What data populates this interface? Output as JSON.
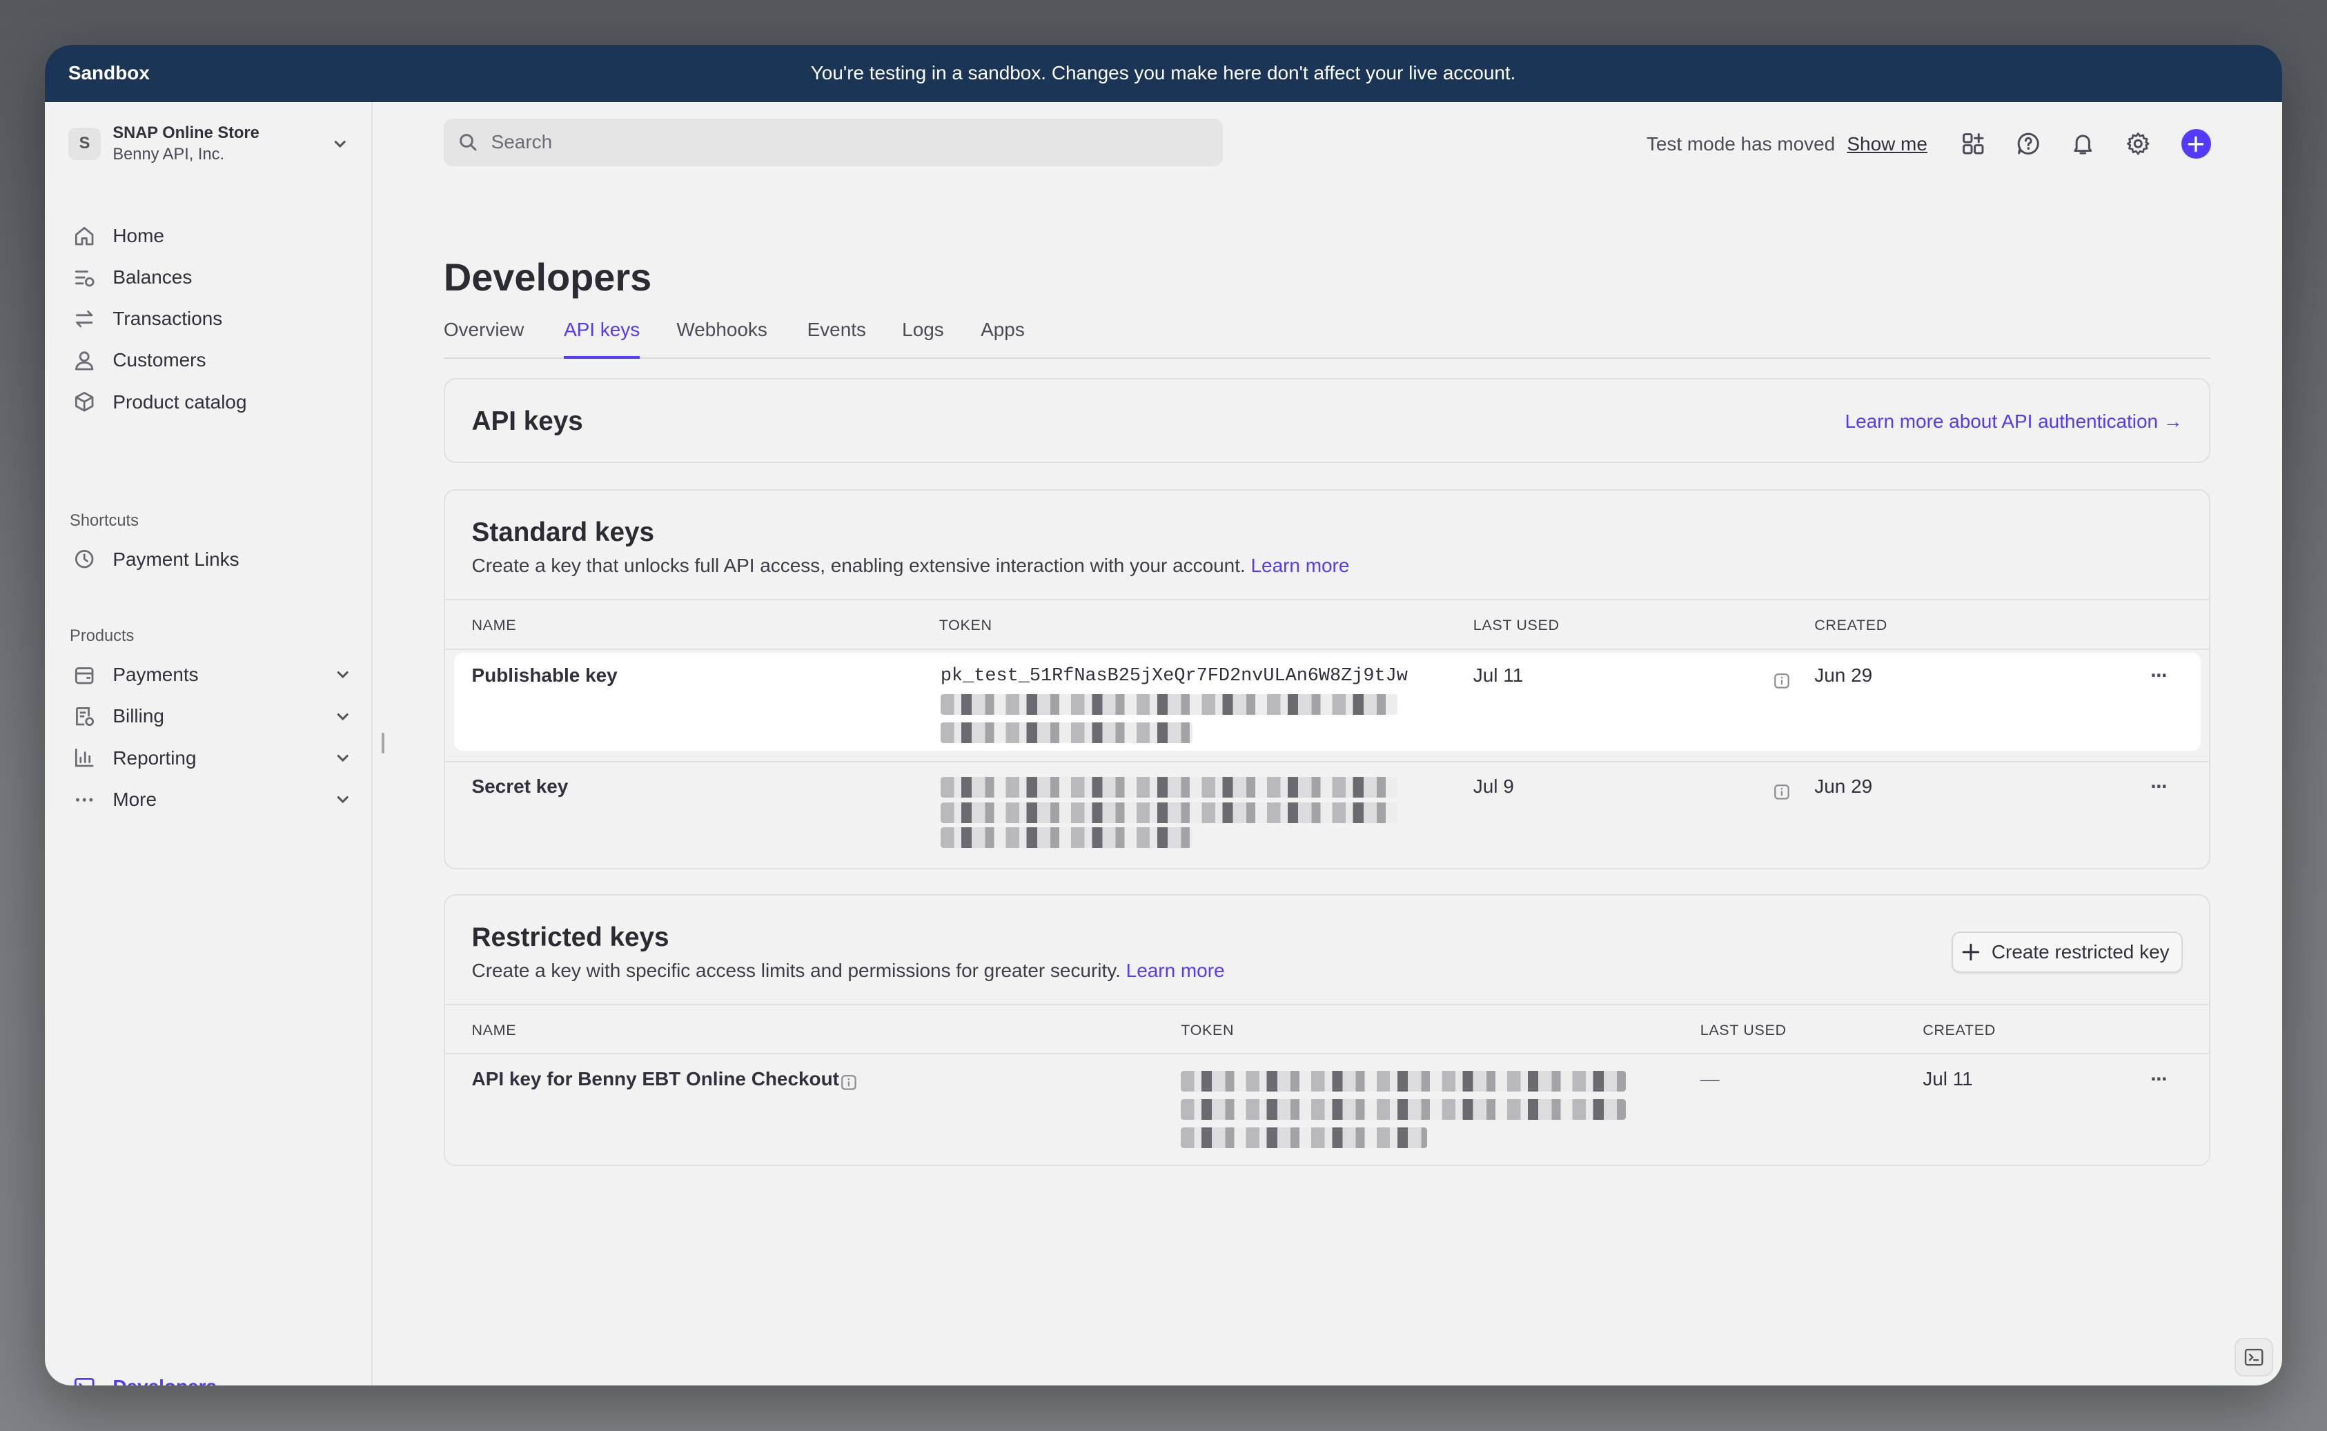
{
  "banner": {
    "title": "Sandbox",
    "message": "You're testing in a sandbox. Changes you make here don't affect your live account."
  },
  "account": {
    "initial": "S",
    "name": "SNAP Online Store",
    "company": "Benny API, Inc."
  },
  "sidebar": {
    "items": [
      {
        "label": "Home",
        "icon": "home-icon"
      },
      {
        "label": "Balances",
        "icon": "balances-icon"
      },
      {
        "label": "Transactions",
        "icon": "transactions-icon"
      },
      {
        "label": "Customers",
        "icon": "customers-icon"
      },
      {
        "label": "Product catalog",
        "icon": "box-icon"
      }
    ],
    "shortcuts_label": "Shortcuts",
    "shortcuts": [
      {
        "label": "Payment Links",
        "icon": "clock-icon"
      }
    ],
    "products_label": "Products",
    "products": [
      {
        "label": "Payments",
        "icon": "payments-icon"
      },
      {
        "label": "Billing",
        "icon": "billing-icon"
      },
      {
        "label": "Reporting",
        "icon": "chart-icon"
      },
      {
        "label": "More",
        "icon": "more-icon"
      }
    ],
    "developers_label": "Developers"
  },
  "header": {
    "search_placeholder": "Search",
    "test_mode_text": "Test mode has moved",
    "show_me": "Show me"
  },
  "page": {
    "title": "Developers",
    "tabs": [
      "Overview",
      "API keys",
      "Webhooks",
      "Events",
      "Logs",
      "Apps"
    ],
    "active_tab": "API keys"
  },
  "api_keys_card": {
    "title": "API keys",
    "learn_more": "Learn more about API authentication →"
  },
  "standard_keys": {
    "title": "Standard keys",
    "description": "Create a key that unlocks full API access, enabling extensive interaction with your account.",
    "learn_more": "Learn more",
    "columns": [
      "NAME",
      "TOKEN",
      "LAST USED",
      "CREATED"
    ],
    "rows": [
      {
        "name": "Publishable key",
        "token": "pk_test_51RfNasB25jXeQr7FD2nvULAn6W8Zj9tJw",
        "last_used": "Jul 11",
        "created": "Jun 29"
      },
      {
        "name": "Secret key",
        "token": "",
        "last_used": "Jul 9",
        "created": "Jun 29"
      }
    ]
  },
  "restricted_keys": {
    "title": "Restricted keys",
    "description": "Create a key with specific access limits and permissions for greater security.",
    "learn_more": "Learn more",
    "create_button": "Create restricted key",
    "columns": [
      "NAME",
      "TOKEN",
      "LAST USED",
      "CREATED"
    ],
    "rows": [
      {
        "name": "API key for Benny EBT Online Checkout",
        "token": "",
        "last_used": "—",
        "created": "Jul 11"
      }
    ]
  },
  "colors": {
    "accent": "#533afd",
    "banner": "#1a3556"
  }
}
